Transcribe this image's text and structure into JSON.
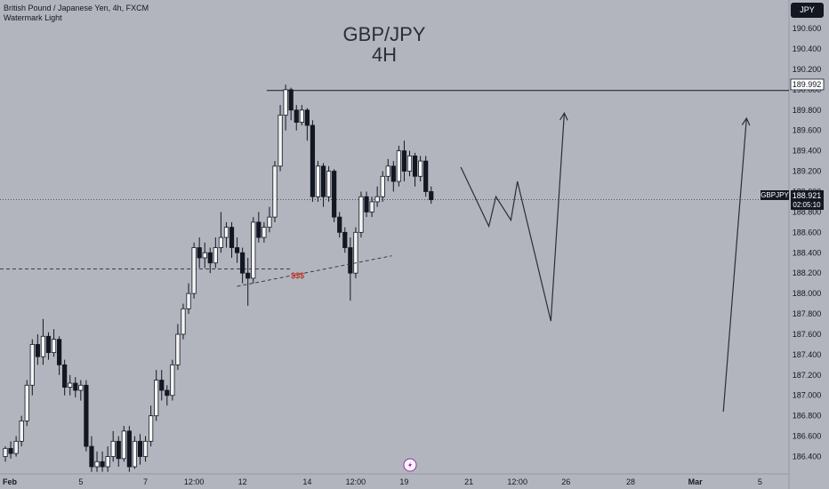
{
  "header": {
    "symbol_line": "British Pound / Japanese Yen, 4h, FXCM",
    "theme_line": "Watermark Light"
  },
  "title": {
    "line1": "GBP/JPY",
    "line2": "4H"
  },
  "currency_badge": "JPY",
  "annotations": {
    "liquidity_label": "$$$"
  },
  "markers": {
    "resistance_value": "189.992",
    "symbol_label": "GBPJPY",
    "last_price": "188.921",
    "countdown": "02:05:10"
  },
  "colors": {
    "background": "#b2b5be",
    "candle": "#131722",
    "liquidity_label": "#c0392b",
    "text": "#131722"
  },
  "chart_data": {
    "type": "candlestick",
    "title": "GBP/JPY 4H",
    "symbol": "British Pound / Japanese Yen, 4h, FXCM",
    "ylim": [
      186.23,
      190.88
    ],
    "y_ticks": [
      "190.600",
      "190.400",
      "190.200",
      "190.000",
      "189.800",
      "189.600",
      "189.400",
      "189.200",
      "189.000",
      "188.800",
      "188.600",
      "188.400",
      "188.200",
      "188.000",
      "187.800",
      "187.600",
      "187.400",
      "187.200",
      "187.000",
      "186.800",
      "186.600",
      "186.400"
    ],
    "x_ticks": [
      {
        "label": "Feb",
        "bold": true,
        "i": 0
      },
      {
        "label": "5",
        "bold": false,
        "i": 14
      },
      {
        "label": "7",
        "bold": false,
        "i": 26
      },
      {
        "label": "12:00",
        "bold": false,
        "i": 35
      },
      {
        "label": "12",
        "bold": false,
        "i": 44
      },
      {
        "label": "14",
        "bold": false,
        "i": 56
      },
      {
        "label": "12:00",
        "bold": false,
        "i": 65
      },
      {
        "label": "19",
        "bold": false,
        "i": 74
      },
      {
        "label": "21",
        "bold": false,
        "i": 86
      },
      {
        "label": "12:00",
        "bold": false,
        "i": 95
      },
      {
        "label": "26",
        "bold": false,
        "i": 104
      },
      {
        "label": "28",
        "bold": false,
        "i": 116
      },
      {
        "label": "Mar",
        "bold": true,
        "i": 128
      },
      {
        "label": "5",
        "bold": false,
        "i": 140
      }
    ],
    "candles": [
      [
        186.4,
        186.48,
        186.35,
        186.5
      ],
      [
        186.48,
        186.43,
        186.38,
        186.55
      ],
      [
        186.43,
        186.55,
        186.4,
        186.6
      ],
      [
        186.55,
        186.75,
        186.5,
        186.8
      ],
      [
        186.75,
        187.1,
        186.7,
        187.15
      ],
      [
        187.1,
        187.5,
        187.0,
        187.55
      ],
      [
        187.5,
        187.38,
        187.3,
        187.6
      ],
      [
        187.38,
        187.58,
        187.3,
        187.75
      ],
      [
        187.58,
        187.42,
        187.35,
        187.62
      ],
      [
        187.42,
        187.55,
        187.38,
        187.65
      ],
      [
        187.55,
        187.3,
        187.2,
        187.58
      ],
      [
        187.3,
        187.08,
        187.0,
        187.35
      ],
      [
        187.08,
        187.12,
        187.0,
        187.2
      ],
      [
        187.12,
        187.05,
        186.98,
        187.18
      ],
      [
        187.05,
        187.1,
        186.95,
        187.15
      ],
      [
        187.1,
        186.5,
        186.45,
        187.15
      ],
      [
        186.5,
        186.3,
        186.25,
        186.6
      ],
      [
        186.3,
        186.35,
        186.25,
        186.45
      ],
      [
        186.35,
        186.3,
        186.25,
        186.45
      ],
      [
        186.3,
        186.4,
        186.25,
        186.5
      ],
      [
        186.4,
        186.55,
        186.35,
        186.65
      ],
      [
        186.55,
        186.38,
        186.3,
        186.6
      ],
      [
        186.38,
        186.65,
        186.35,
        186.7
      ],
      [
        186.65,
        186.3,
        186.25,
        186.7
      ],
      [
        186.3,
        186.55,
        186.28,
        186.6
      ],
      [
        186.55,
        186.4,
        186.32,
        186.62
      ],
      [
        186.4,
        186.55,
        186.35,
        186.6
      ],
      [
        186.55,
        186.8,
        186.5,
        186.9
      ],
      [
        186.8,
        187.15,
        186.75,
        187.25
      ],
      [
        187.15,
        187.05,
        186.95,
        187.25
      ],
      [
        187.05,
        187.0,
        186.9,
        187.1
      ],
      [
        187.0,
        187.3,
        186.95,
        187.35
      ],
      [
        187.3,
        187.6,
        187.25,
        187.7
      ],
      [
        187.6,
        187.85,
        187.55,
        187.9
      ],
      [
        187.85,
        188.0,
        187.8,
        188.1
      ],
      [
        188.0,
        188.45,
        187.95,
        188.5
      ],
      [
        188.45,
        188.35,
        188.25,
        188.55
      ],
      [
        188.35,
        188.4,
        188.25,
        188.5
      ],
      [
        188.4,
        188.3,
        188.2,
        188.45
      ],
      [
        188.3,
        188.45,
        188.25,
        188.55
      ],
      [
        188.45,
        188.55,
        188.4,
        188.8
      ],
      [
        188.55,
        188.65,
        188.45,
        188.7
      ],
      [
        188.65,
        188.45,
        188.35,
        188.7
      ],
      [
        188.45,
        188.4,
        188.3,
        188.55
      ],
      [
        188.4,
        188.2,
        188.1,
        188.45
      ],
      [
        188.2,
        188.15,
        187.88,
        188.35
      ],
      [
        188.15,
        188.7,
        188.1,
        188.75
      ],
      [
        188.7,
        188.55,
        188.5,
        188.8
      ],
      [
        188.55,
        188.65,
        188.5,
        188.7
      ],
      [
        188.65,
        188.75,
        188.6,
        188.85
      ],
      [
        188.75,
        189.25,
        188.7,
        189.3
      ],
      [
        189.25,
        189.75,
        189.2,
        189.85
      ],
      [
        189.75,
        190.0,
        189.6,
        190.05
      ],
      [
        190.0,
        189.8,
        189.7,
        190.02
      ],
      [
        189.8,
        189.68,
        189.6,
        189.85
      ],
      [
        189.68,
        189.8,
        189.65,
        189.85
      ],
      [
        189.8,
        189.65,
        189.5,
        189.82
      ],
      [
        189.65,
        188.95,
        188.9,
        189.7
      ],
      [
        188.95,
        189.25,
        188.9,
        189.3
      ],
      [
        189.25,
        188.95,
        188.85,
        189.28
      ],
      [
        188.95,
        189.2,
        188.9,
        189.25
      ],
      [
        189.2,
        188.75,
        188.7,
        189.22
      ],
      [
        188.75,
        188.6,
        188.55,
        188.8
      ],
      [
        188.6,
        188.45,
        188.4,
        188.65
      ],
      [
        188.45,
        188.2,
        187.93,
        188.55
      ],
      [
        188.2,
        188.6,
        188.15,
        188.65
      ],
      [
        188.6,
        188.95,
        188.55,
        189.0
      ],
      [
        188.95,
        188.8,
        188.75,
        189.0
      ],
      [
        188.8,
        188.9,
        188.75,
        188.95
      ],
      [
        188.9,
        188.95,
        188.85,
        189.05
      ],
      [
        188.95,
        189.15,
        188.9,
        189.2
      ],
      [
        189.15,
        189.25,
        189.1,
        189.32
      ],
      [
        189.25,
        189.1,
        189.0,
        189.3
      ],
      [
        189.1,
        189.4,
        189.05,
        189.45
      ],
      [
        189.4,
        189.2,
        189.1,
        189.5
      ],
      [
        189.2,
        189.35,
        189.15,
        189.4
      ],
      [
        189.35,
        189.15,
        189.05,
        189.38
      ],
      [
        189.15,
        189.3,
        189.1,
        189.35
      ],
      [
        189.3,
        189.0,
        188.95,
        189.35
      ],
      [
        189.0,
        188.92,
        188.88,
        189.05
      ]
    ],
    "levels": {
      "resistance": 189.992,
      "last_price": 188.921,
      "liquidity_level": 188.24
    },
    "forecast_path_1": [
      {
        "i": 84.5,
        "y": 189.24
      },
      {
        "i": 89.7,
        "y": 188.66
      },
      {
        "i": 91.0,
        "y": 188.95
      },
      {
        "i": 93.8,
        "y": 188.72
      },
      {
        "i": 95.0,
        "y": 189.1
      },
      {
        "i": 101.2,
        "y": 187.73
      },
      {
        "i": 103.7,
        "y": 189.77
      }
    ],
    "forecast_path_2": [
      {
        "i": 133.2,
        "y": 186.84
      },
      {
        "i": 137.5,
        "y": 189.72
      }
    ],
    "liquidity_trendline": [
      {
        "i": 43.0,
        "y": 188.07
      },
      {
        "i": 71.7,
        "y": 188.37
      }
    ]
  }
}
